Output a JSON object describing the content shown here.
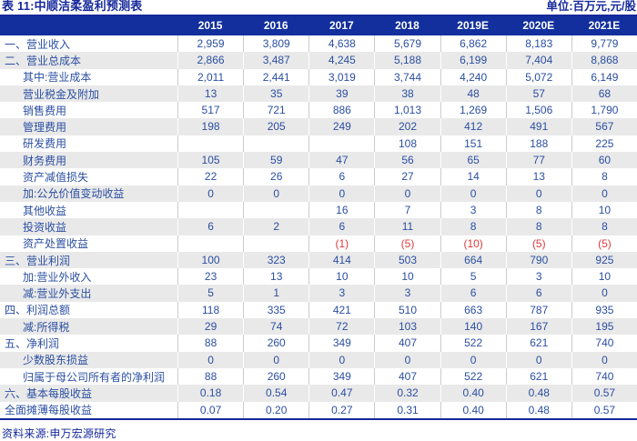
{
  "title": "表 11:中顺洁柔盈利预测表",
  "unit_label": "单位:百万元,元/股",
  "source_label": "资料来源:申万宏源研究",
  "colors": {
    "header_bg": "#122F9D",
    "text_blue": "#2B4FA2",
    "title_blue": "#15289C",
    "negative_red": "#DE3A3E",
    "stripe_gray": "#E9E9E9",
    "border_gray": "#CBCBCB"
  },
  "chart_data": {
    "type": "table",
    "title": "表 11:中顺洁柔盈利预测表",
    "unit": "百万元,元/股",
    "columns": [
      "2015",
      "2016",
      "2017",
      "2018",
      "2019E",
      "2020E",
      "2021E"
    ],
    "rows": [
      {
        "label": "一、营业收入",
        "indent": false,
        "values": [
          "2,959",
          "3,809",
          "4,638",
          "5,679",
          "6,862",
          "8,183",
          "9,779"
        ]
      },
      {
        "label": "二、营业总成本",
        "indent": false,
        "values": [
          "2,866",
          "3,487",
          "4,245",
          "5,188",
          "6,199",
          "7,404",
          "8,868"
        ]
      },
      {
        "label": "其中:营业成本",
        "indent": true,
        "values": [
          "2,011",
          "2,441",
          "3,019",
          "3,744",
          "4,240",
          "5,072",
          "6,149"
        ]
      },
      {
        "label": "营业税金及附加",
        "indent": true,
        "values": [
          "13",
          "35",
          "39",
          "38",
          "48",
          "57",
          "68"
        ]
      },
      {
        "label": "销售费用",
        "indent": true,
        "values": [
          "517",
          "721",
          "886",
          "1,013",
          "1,269",
          "1,506",
          "1,790"
        ]
      },
      {
        "label": "管理费用",
        "indent": true,
        "values": [
          "198",
          "205",
          "249",
          "202",
          "412",
          "491",
          "567"
        ]
      },
      {
        "label": "研发费用",
        "indent": true,
        "values": [
          "",
          "",
          "",
          "108",
          "151",
          "188",
          "225"
        ]
      },
      {
        "label": "财务费用",
        "indent": true,
        "values": [
          "105",
          "59",
          "47",
          "56",
          "65",
          "77",
          "60"
        ]
      },
      {
        "label": "资产减值损失",
        "indent": true,
        "values": [
          "22",
          "26",
          "6",
          "27",
          "14",
          "13",
          "8"
        ]
      },
      {
        "label": "加:公允价值变动收益",
        "indent": true,
        "values": [
          "0",
          "0",
          "0",
          "0",
          "0",
          "0",
          "0"
        ]
      },
      {
        "label": "其他收益",
        "indent": true,
        "values": [
          "",
          "",
          "16",
          "7",
          "3",
          "8",
          "10"
        ]
      },
      {
        "label": "投资收益",
        "indent": true,
        "values": [
          "6",
          "2",
          "6",
          "11",
          "8",
          "8",
          "8"
        ]
      },
      {
        "label": "资产处置收益",
        "indent": true,
        "values": [
          "",
          "",
          "(1)",
          "(5)",
          "(10)",
          "(5)",
          "(5)"
        ]
      },
      {
        "label": "三、营业利润",
        "indent": false,
        "values": [
          "100",
          "323",
          "414",
          "503",
          "664",
          "790",
          "925"
        ]
      },
      {
        "label": "加:营业外收入",
        "indent": true,
        "values": [
          "23",
          "13",
          "10",
          "10",
          "5",
          "3",
          "10"
        ]
      },
      {
        "label": "减:营业外支出",
        "indent": true,
        "values": [
          "5",
          "1",
          "3",
          "3",
          "6",
          "6",
          "0"
        ]
      },
      {
        "label": "四、利润总额",
        "indent": false,
        "values": [
          "118",
          "335",
          "421",
          "510",
          "663",
          "787",
          "935"
        ]
      },
      {
        "label": "减:所得税",
        "indent": true,
        "values": [
          "29",
          "74",
          "72",
          "103",
          "140",
          "167",
          "195"
        ]
      },
      {
        "label": "五、净利润",
        "indent": false,
        "values": [
          "88",
          "260",
          "349",
          "407",
          "522",
          "621",
          "740"
        ]
      },
      {
        "label": "少数股东损益",
        "indent": true,
        "values": [
          "0",
          "0",
          "0",
          "0",
          "0",
          "0",
          "0"
        ]
      },
      {
        "label": "归属于母公司所有者的净利润",
        "indent": true,
        "values": [
          "88",
          "260",
          "349",
          "407",
          "522",
          "621",
          "740"
        ]
      },
      {
        "label": "六、基本每股收益",
        "indent": false,
        "values": [
          "0.18",
          "0.54",
          "0.47",
          "0.32",
          "0.40",
          "0.48",
          "0.57"
        ]
      },
      {
        "label": "全面摊薄每股收益",
        "indent": false,
        "values": [
          "0.07",
          "0.20",
          "0.27",
          "0.31",
          "0.40",
          "0.48",
          "0.57"
        ]
      }
    ]
  }
}
